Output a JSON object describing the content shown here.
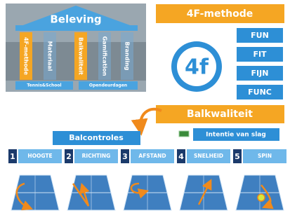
{
  "temple": {
    "roof": "Beleving",
    "pillars": [
      "4F-methode",
      "Materiaal",
      "Balkwaliteit",
      "Gamification",
      "Branding"
    ],
    "base": [
      "Tennis&School",
      "Opendeurdagen"
    ]
  },
  "method": {
    "title": "4F-methode",
    "logo": "4f",
    "items": [
      "FUN",
      "FIT",
      "FIJN",
      "FUNC"
    ]
  },
  "quality": {
    "title": "Balkwaliteit",
    "controls": "Balcontroles",
    "intent": "Intentie van slag"
  },
  "steps": [
    {
      "number": "1",
      "label": "HOOGTE"
    },
    {
      "number": "2",
      "label": "RICHTING"
    },
    {
      "number": "3",
      "label": "AFSTAND"
    },
    {
      "number": "4",
      "label": "SNELHEID"
    },
    {
      "number": "5",
      "label": "SPIN"
    }
  ]
}
